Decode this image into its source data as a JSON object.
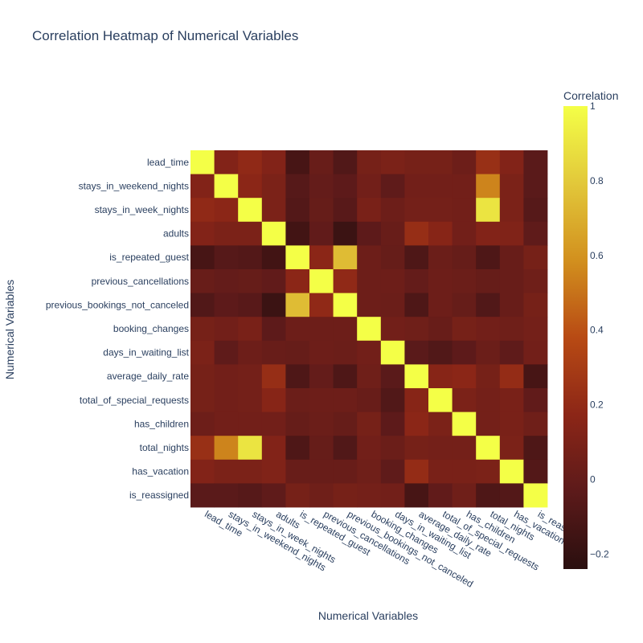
{
  "chart_data": {
    "type": "heatmap",
    "title": "Correlation Heatmap of Numerical Variables",
    "xlabel": "Numerical Variables",
    "ylabel": "Numerical Variables",
    "colorbar": {
      "title": "Correlation",
      "range": [
        -0.24,
        1
      ],
      "ticks": [
        1,
        0.8,
        0.6,
        0.4,
        0.2,
        0,
        -0.2
      ],
      "tick_labels": [
        "1",
        "0.8",
        "0.6",
        "0.4",
        "0.2",
        "0",
        "−0.2"
      ],
      "colors": [
        "#2a0f0f",
        "#5c1a1a",
        "#8c2617",
        "#b84a14",
        "#d2901e",
        "#e2c83a",
        "#f4ff47"
      ]
    },
    "labels": [
      "lead_time",
      "stays_in_weekend_nights",
      "stays_in_week_nights",
      "adults",
      "is_repeated_guest",
      "previous_cancellations",
      "previous_bookings_not_canceled",
      "booking_changes",
      "days_in_waiting_list",
      "average_daily_rate",
      "total_of_special_requests",
      "has_children",
      "total_nights",
      "has_vacation",
      "is_reassigned"
    ],
    "x_tick_labels": [
      "lead_time",
      "stays_in_weekend_nights",
      "stays_in_week_nights",
      "adults",
      "is_repeated_guest",
      "previous_cancellations",
      "previous_bookings_not_canceled",
      "booking_changes",
      "days_in_waiting_list",
      "average_daily_rate",
      "total_of_special_requests",
      "has_children",
      "total_nights",
      "has_vacation",
      "is_reas"
    ],
    "z": [
      [
        1.0,
        0.13,
        0.19,
        0.13,
        -0.12,
        0.02,
        -0.08,
        0.08,
        0.1,
        0.08,
        0.08,
        0.04,
        0.23,
        0.13,
        -0.04
      ],
      [
        0.13,
        1.0,
        0.17,
        0.1,
        -0.06,
        0.0,
        -0.03,
        0.06,
        -0.02,
        0.06,
        0.06,
        0.06,
        0.55,
        0.1,
        -0.04
      ],
      [
        0.19,
        0.17,
        1.0,
        0.1,
        -0.07,
        0.01,
        -0.05,
        0.09,
        0.04,
        0.07,
        0.07,
        0.06,
        0.9,
        0.1,
        -0.06
      ],
      [
        0.13,
        0.1,
        0.1,
        1.0,
        -0.14,
        -0.01,
        -0.17,
        -0.03,
        0.02,
        0.22,
        0.15,
        0.06,
        0.13,
        0.12,
        -0.02
      ],
      [
        -0.12,
        -0.06,
        -0.07,
        -0.14,
        1.0,
        0.17,
        0.75,
        0.04,
        0.01,
        -0.09,
        0.03,
        0.01,
        -0.09,
        0.02,
        0.08
      ],
      [
        0.02,
        0.0,
        0.01,
        -0.01,
        0.17,
        1.0,
        0.19,
        0.04,
        0.04,
        0.0,
        0.04,
        0.03,
        0.01,
        0.02,
        0.05
      ],
      [
        -0.08,
        -0.03,
        -0.05,
        -0.17,
        0.75,
        0.19,
        1.0,
        0.04,
        0.03,
        -0.09,
        0.04,
        0.01,
        -0.08,
        0.02,
        0.08
      ],
      [
        0.08,
        0.06,
        0.09,
        -0.03,
        0.04,
        0.04,
        0.04,
        1.0,
        0.06,
        0.05,
        0.02,
        0.08,
        0.06,
        0.05,
        0.07
      ],
      [
        0.1,
        -0.02,
        0.04,
        0.02,
        0.01,
        0.04,
        0.03,
        0.06,
        1.0,
        -0.04,
        -0.08,
        -0.03,
        0.03,
        -0.02,
        0.06
      ],
      [
        0.08,
        0.06,
        0.07,
        0.22,
        -0.09,
        0.0,
        -0.09,
        0.05,
        -0.04,
        1.0,
        0.15,
        0.17,
        0.08,
        0.21,
        -0.12
      ],
      [
        0.08,
        0.06,
        0.07,
        0.15,
        0.03,
        0.04,
        0.04,
        0.02,
        -0.08,
        0.15,
        1.0,
        0.1,
        0.07,
        0.09,
        -0.01
      ],
      [
        0.04,
        0.06,
        0.06,
        0.06,
        0.01,
        0.03,
        0.01,
        0.08,
        -0.03,
        0.17,
        0.1,
        1.0,
        0.07,
        0.09,
        0.05
      ],
      [
        0.23,
        0.55,
        0.9,
        0.13,
        -0.09,
        0.01,
        -0.08,
        0.06,
        0.03,
        0.08,
        0.07,
        0.07,
        1.0,
        0.1,
        -0.09
      ],
      [
        0.13,
        0.1,
        0.1,
        0.12,
        0.02,
        0.02,
        0.02,
        0.05,
        -0.02,
        0.21,
        0.09,
        0.09,
        0.1,
        1.0,
        -0.07
      ],
      [
        -0.04,
        -0.04,
        -0.06,
        -0.02,
        0.08,
        0.05,
        0.08,
        0.07,
        0.06,
        -0.12,
        -0.01,
        0.05,
        -0.09,
        -0.07,
        1.0
      ]
    ]
  }
}
